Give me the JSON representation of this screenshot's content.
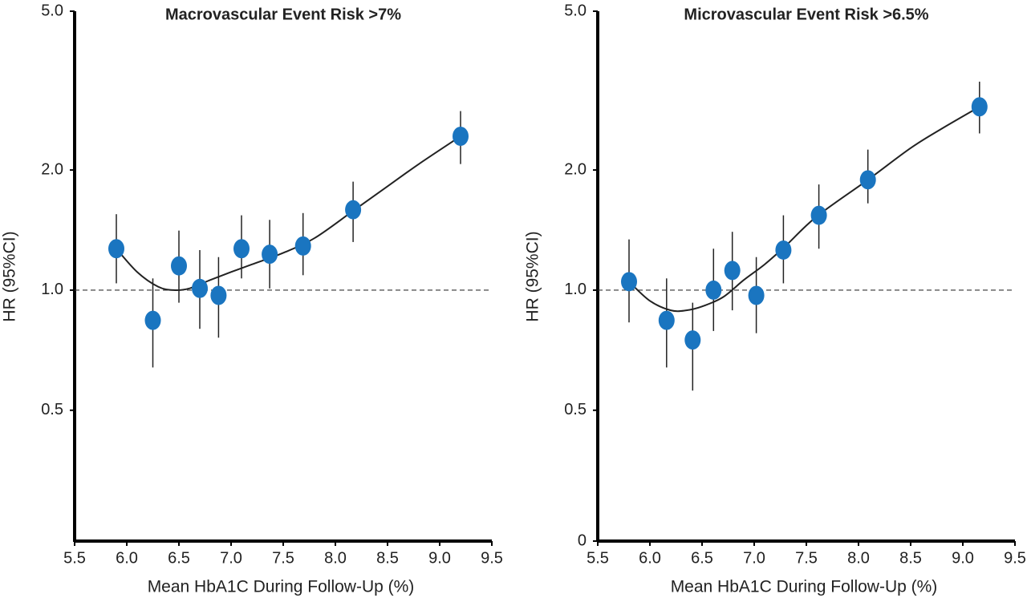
{
  "chart_data": [
    {
      "type": "errorbar-scatter",
      "title": "Macrovascular Event Risk >7%",
      "xlabel": "Mean HbA1C During Follow-Up (%)",
      "ylabel": "HR (95%CI)",
      "log_y": true,
      "color": "#1a75c0",
      "fit_color": "#222222",
      "hline": 1,
      "xlim": [
        5.5,
        9.5
      ],
      "xticks": [
        5.5,
        {
          "value": 6,
          "label": "6.0"
        },
        6.5,
        {
          "value": 7,
          "label": "7.0"
        },
        7.5,
        {
          "value": 8,
          "label": "8.0"
        },
        8.5,
        {
          "value": 9,
          "label": "9.0"
        },
        9.5
      ],
      "ylim": [
        0.235,
        5
      ],
      "yticks": [
        0.5,
        {
          "value": 1,
          "label": "1.0"
        },
        {
          "value": 2,
          "label": "2.0"
        },
        {
          "value": 5,
          "label": "5.0"
        }
      ],
      "x": [
        5.9,
        6.25,
        6.5,
        6.7,
        6.88,
        7.1,
        7.37,
        7.69,
        8.17,
        9.2
      ],
      "values": [
        1.27,
        0.84,
        1.15,
        1.01,
        0.97,
        1.27,
        1.23,
        1.29,
        1.59,
        2.43
      ],
      "lower": [
        1.04,
        0.64,
        0.93,
        0.8,
        0.76,
        1.07,
        1.01,
        1.09,
        1.32,
        2.07
      ],
      "upper": [
        1.55,
        1.07,
        1.41,
        1.26,
        1.21,
        1.54,
        1.5,
        1.56,
        1.87,
        2.81
      ],
      "fit": {
        "x": [
          5.9,
          6.1,
          6.3,
          6.45,
          6.6,
          6.8,
          7.0,
          7.2,
          7.5,
          7.8,
          8.17,
          8.5,
          8.8,
          9.2
        ],
        "values": [
          1.27,
          1.11,
          1.02,
          1.0,
          1.01,
          1.06,
          1.11,
          1.16,
          1.24,
          1.35,
          1.58,
          1.82,
          2.07,
          2.43
        ]
      }
    },
    {
      "type": "errorbar-scatter",
      "title": "Microvascular Event Risk >6.5%",
      "xlabel": "Mean HbA1C During Follow-Up (%)",
      "ylabel": "HR (95%CI)",
      "log_y": true,
      "color": "#1a75c0",
      "fit_color": "#222222",
      "hline": 1,
      "xlim": [
        5.5,
        9.5
      ],
      "xticks": [
        5.5,
        {
          "value": 6,
          "label": "6.0"
        },
        6.5,
        {
          "value": 7,
          "label": "7.0"
        },
        7.5,
        {
          "value": 8,
          "label": "8.0"
        },
        8.5,
        {
          "value": 9,
          "label": "9.0"
        },
        9.5
      ],
      "ylim": [
        0.235,
        5
      ],
      "yticks": [
        {
          "value": 0.235,
          "label": "0"
        },
        0.5,
        {
          "value": 1,
          "label": "1.0"
        },
        {
          "value": 2,
          "label": "2.0"
        },
        {
          "value": 5,
          "label": "5.0"
        }
      ],
      "x": [
        5.8,
        6.16,
        6.41,
        6.61,
        6.79,
        7.02,
        7.28,
        7.62,
        8.09,
        9.16
      ],
      "values": [
        1.05,
        0.84,
        0.75,
        1.0,
        1.12,
        0.97,
        1.26,
        1.54,
        1.89,
        2.88
      ],
      "lower": [
        0.83,
        0.64,
        0.56,
        0.79,
        0.89,
        0.78,
        1.04,
        1.27,
        1.65,
        2.47
      ],
      "upper": [
        1.34,
        1.07,
        0.93,
        1.27,
        1.4,
        1.21,
        1.54,
        1.84,
        2.25,
        3.33
      ],
      "fit": {
        "x": [
          5.8,
          6.0,
          6.2,
          6.35,
          6.5,
          6.7,
          6.9,
          7.1,
          7.3,
          7.6,
          8.09,
          8.5,
          8.8,
          9.16
        ],
        "values": [
          1.05,
          0.94,
          0.89,
          0.89,
          0.91,
          0.96,
          1.06,
          1.16,
          1.29,
          1.53,
          1.89,
          2.27,
          2.54,
          2.88
        ]
      }
    }
  ]
}
